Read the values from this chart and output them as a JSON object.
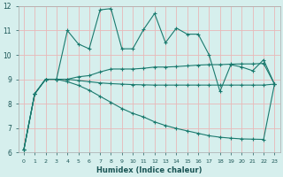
{
  "xlabel": "Humidex (Indice chaleur)",
  "xlim": [
    -0.5,
    23.5
  ],
  "ylim": [
    6,
    12
  ],
  "xticks": [
    0,
    1,
    2,
    3,
    4,
    5,
    6,
    7,
    8,
    9,
    10,
    11,
    12,
    13,
    14,
    15,
    16,
    17,
    18,
    19,
    20,
    21,
    22,
    23
  ],
  "yticks": [
    6,
    7,
    8,
    9,
    10,
    11,
    12
  ],
  "background_color": "#d6efed",
  "grid_color": "#e8b8b8",
  "line_color": "#1a7a6e",
  "lines": [
    {
      "x": [
        0,
        1,
        2,
        3,
        4,
        5,
        6,
        7,
        8,
        9,
        10,
        11,
        12,
        13,
        14,
        15,
        16,
        17,
        18,
        19,
        20,
        21,
        22,
        23
      ],
      "y": [
        6.1,
        8.4,
        9.0,
        9.0,
        11.0,
        10.45,
        10.25,
        11.85,
        11.9,
        10.25,
        10.25,
        11.05,
        11.7,
        10.5,
        11.1,
        10.85,
        10.85,
        10.0,
        8.5,
        9.6,
        9.5,
        9.35,
        9.8,
        8.8
      ]
    },
    {
      "x": [
        0,
        1,
        2,
        3,
        4,
        5,
        6,
        7,
        8,
        9,
        10,
        11,
        12,
        13,
        14,
        15,
        16,
        17,
        18,
        19,
        20,
        21,
        22,
        23
      ],
      "y": [
        6.1,
        8.4,
        9.0,
        9.0,
        9.0,
        9.1,
        9.15,
        9.3,
        9.42,
        9.42,
        9.42,
        9.45,
        9.5,
        9.5,
        9.52,
        9.55,
        9.58,
        9.6,
        9.6,
        9.62,
        9.63,
        9.63,
        9.65,
        8.8
      ]
    },
    {
      "x": [
        0,
        1,
        2,
        3,
        4,
        5,
        6,
        7,
        8,
        9,
        10,
        11,
        12,
        13,
        14,
        15,
        16,
        17,
        18,
        19,
        20,
        21,
        22,
        23
      ],
      "y": [
        6.1,
        8.4,
        9.0,
        9.0,
        9.0,
        8.95,
        8.9,
        8.85,
        8.82,
        8.8,
        8.78,
        8.77,
        8.76,
        8.76,
        8.76,
        8.76,
        8.76,
        8.76,
        8.76,
        8.76,
        8.76,
        8.76,
        8.76,
        8.8
      ]
    },
    {
      "x": [
        0,
        1,
        2,
        3,
        4,
        5,
        6,
        7,
        8,
        9,
        10,
        11,
        12,
        13,
        14,
        15,
        16,
        17,
        18,
        19,
        20,
        21,
        22,
        23
      ],
      "y": [
        6.1,
        8.4,
        9.0,
        9.0,
        8.9,
        8.75,
        8.55,
        8.3,
        8.05,
        7.8,
        7.6,
        7.45,
        7.25,
        7.1,
        6.98,
        6.88,
        6.78,
        6.68,
        6.62,
        6.58,
        6.55,
        6.54,
        6.53,
        8.8
      ]
    }
  ]
}
